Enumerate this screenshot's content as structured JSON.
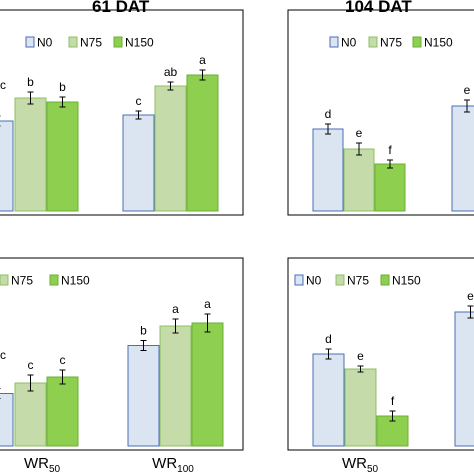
{
  "chart_data": [
    {
      "type": "bar",
      "title": "61 DAT",
      "categories": [
        "",
        "WR100"
      ],
      "series": [
        {
          "name": "N0",
          "values": [
            null,
            0.96
          ],
          "letters": [
            "",
            "c"
          ]
        },
        {
          "name": "N75",
          "values": [
            1.13,
            1.25
          ],
          "letters": [
            "b",
            "ab"
          ]
        },
        {
          "name": "N150",
          "values": [
            1.09,
            1.36
          ],
          "letters": [
            "b",
            "a"
          ]
        }
      ],
      "partial_n0_value": 0.9,
      "partial_letter": "c"
    },
    {
      "type": "bar",
      "title": "104 DAT",
      "categories": [
        "",
        ""
      ],
      "series": [
        {
          "name": "N0",
          "values": [
            0.82,
            1.05
          ],
          "letters": [
            "d",
            "e"
          ]
        },
        {
          "name": "N75",
          "values": [
            0.62,
            null
          ],
          "letters": [
            "e",
            ""
          ]
        },
        {
          "name": "N150",
          "values": [
            0.47,
            null
          ],
          "letters": [
            "f",
            ""
          ]
        }
      ]
    },
    {
      "type": "bar",
      "title": "",
      "categories": [
        "WR50",
        "WR100"
      ],
      "series": [
        {
          "name": "N75",
          "values": [
            0.42,
            0.8
          ],
          "letters": [
            "c",
            "a"
          ]
        },
        {
          "name": "N150",
          "values": [
            0.46,
            0.82
          ],
          "letters": [
            "c",
            "a"
          ]
        }
      ],
      "n0_values": [
        0.35,
        0.67
      ],
      "n0_letters": [
        "c",
        "b"
      ]
    },
    {
      "type": "bar",
      "title": "",
      "categories": [
        "WR50",
        ""
      ],
      "series": [
        {
          "name": "N0",
          "values": [
            0.92,
            1.34
          ],
          "letters": [
            "d",
            "e"
          ]
        },
        {
          "name": "N75",
          "values": [
            0.77,
            null
          ],
          "letters": [
            "e",
            ""
          ]
        },
        {
          "name": "N150",
          "values": [
            0.3,
            null
          ],
          "letters": [
            "f",
            ""
          ]
        }
      ]
    }
  ],
  "legend": {
    "n0": "N0",
    "n75": "N75",
    "n150": "N150"
  },
  "titles": {
    "left": "61 DAT",
    "right": "104 DAT"
  },
  "xlabels": {
    "wr": "WR",
    "sub50": "50",
    "sub100": "100"
  },
  "colors": {
    "n0_fill": "#dbe5f1",
    "n0_stroke": "#4a6fb5",
    "n75_fill": "#c5dcaa",
    "n75_stroke": "#8cc063",
    "n150_fill": "#8ecf50",
    "n150_stroke": "#6bb034"
  }
}
